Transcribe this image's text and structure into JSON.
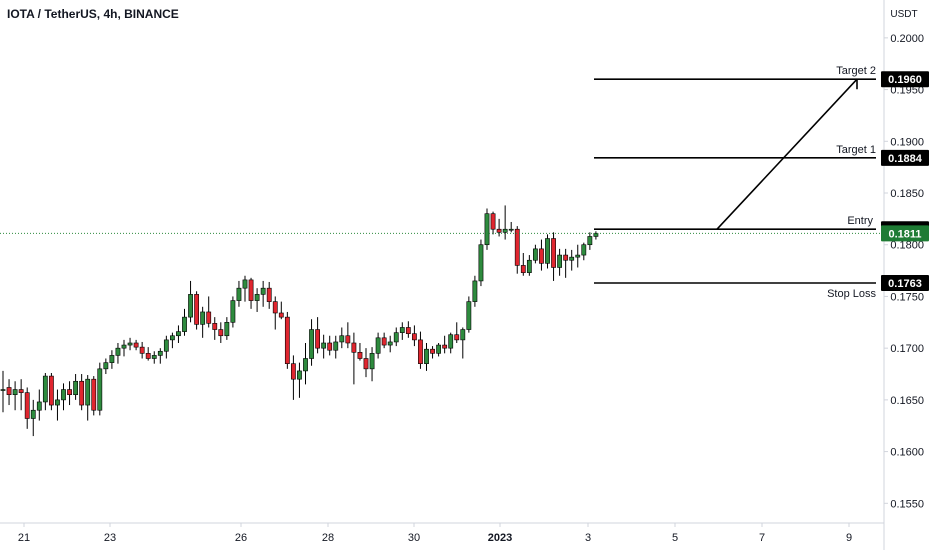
{
  "header": {
    "title": "IOTA / TetherUS, 4h, BINANCE"
  },
  "colors": {
    "up": "#2e8b3e",
    "down": "#e0262f",
    "line": "#000000",
    "axis": "#d1d4dc",
    "text": "#131722",
    "price_badge": "#1e7b34",
    "level_badge": "#000000"
  },
  "chart_data": {
    "type": "candlestick",
    "title": "IOTA / TetherUS, 4h, BINANCE",
    "y_unit": "USDT",
    "ylim": [
      0.153,
      0.2025
    ],
    "y_ticks": [
      "0.2000",
      "0.1950",
      "0.1900",
      "0.1850",
      "0.1800",
      "0.1750",
      "0.1700",
      "0.1650",
      "0.1600",
      "0.1550"
    ],
    "x_ticks": [
      "21",
      "23",
      "26",
      "28",
      "30",
      "2023",
      "3",
      "5",
      "7",
      "9"
    ],
    "current_price": "0.1811",
    "levels": [
      {
        "name": "Target 2",
        "value": "0.1960"
      },
      {
        "name": "Target 1",
        "value": "0.1884"
      },
      {
        "name": "Entry",
        "value": "0.1815"
      },
      {
        "name": "Stop Loss",
        "value": "0.1763"
      }
    ],
    "candles": [
      [
        0.166,
        0.1678,
        0.1638,
        0.166
      ],
      [
        0.1662,
        0.167,
        0.1645,
        0.1655
      ],
      [
        0.1655,
        0.1668,
        0.164,
        0.166
      ],
      [
        0.166,
        0.167,
        0.164,
        0.1657
      ],
      [
        0.1657,
        0.1662,
        0.1622,
        0.1632
      ],
      [
        0.1632,
        0.165,
        0.1615,
        0.164
      ],
      [
        0.164,
        0.166,
        0.163,
        0.1648
      ],
      [
        0.1648,
        0.1676,
        0.164,
        0.1673
      ],
      [
        0.1673,
        0.1676,
        0.164,
        0.1645
      ],
      [
        0.1645,
        0.166,
        0.163,
        0.165
      ],
      [
        0.165,
        0.1666,
        0.164,
        0.166
      ],
      [
        0.166,
        0.1668,
        0.1645,
        0.1655
      ],
      [
        0.1655,
        0.1675,
        0.165,
        0.1668
      ],
      [
        0.1668,
        0.1675,
        0.164,
        0.1645
      ],
      [
        0.1645,
        0.1674,
        0.163,
        0.167
      ],
      [
        0.167,
        0.1673,
        0.1635,
        0.164
      ],
      [
        0.164,
        0.1686,
        0.1635,
        0.168
      ],
      [
        0.168,
        0.169,
        0.1675,
        0.1686
      ],
      [
        0.1686,
        0.1698,
        0.168,
        0.1693
      ],
      [
        0.1693,
        0.1705,
        0.1685,
        0.17
      ],
      [
        0.17,
        0.1708,
        0.1692,
        0.1703
      ],
      [
        0.1703,
        0.171,
        0.1698,
        0.1705
      ],
      [
        0.1705,
        0.1708,
        0.1698,
        0.1701
      ],
      [
        0.1701,
        0.1706,
        0.169,
        0.1695
      ],
      [
        0.1695,
        0.1701,
        0.1688,
        0.169
      ],
      [
        0.169,
        0.1697,
        0.1685,
        0.1693
      ],
      [
        0.1693,
        0.17,
        0.1685,
        0.1697
      ],
      [
        0.1697,
        0.1712,
        0.169,
        0.1708
      ],
      [
        0.1708,
        0.1715,
        0.17,
        0.1712
      ],
      [
        0.1712,
        0.1722,
        0.1705,
        0.1716
      ],
      [
        0.1716,
        0.1738,
        0.1712,
        0.173
      ],
      [
        0.173,
        0.1765,
        0.1725,
        0.1752
      ],
      [
        0.1752,
        0.1755,
        0.1718,
        0.1723
      ],
      [
        0.1723,
        0.174,
        0.171,
        0.1735
      ],
      [
        0.1735,
        0.175,
        0.172,
        0.1724
      ],
      [
        0.1724,
        0.173,
        0.1708,
        0.1718
      ],
      [
        0.1718,
        0.1725,
        0.1705,
        0.1712
      ],
      [
        0.1712,
        0.173,
        0.1708,
        0.1725
      ],
      [
        0.1725,
        0.175,
        0.172,
        0.1746
      ],
      [
        0.1746,
        0.1765,
        0.174,
        0.1758
      ],
      [
        0.1758,
        0.177,
        0.1745,
        0.1766
      ],
      [
        0.1766,
        0.1768,
        0.1738,
        0.1746
      ],
      [
        0.1746,
        0.1758,
        0.1735,
        0.1752
      ],
      [
        0.1752,
        0.1765,
        0.174,
        0.1758
      ],
      [
        0.1758,
        0.1764,
        0.1738,
        0.1745
      ],
      [
        0.1745,
        0.175,
        0.1718,
        0.1734
      ],
      [
        0.1734,
        0.1745,
        0.1728,
        0.173
      ],
      [
        0.173,
        0.1735,
        0.168,
        0.1685
      ],
      [
        0.1685,
        0.1693,
        0.165,
        0.167
      ],
      [
        0.167,
        0.1686,
        0.1652,
        0.1678
      ],
      [
        0.1678,
        0.1705,
        0.1665,
        0.169
      ],
      [
        0.169,
        0.1728,
        0.1683,
        0.1718
      ],
      [
        0.1718,
        0.173,
        0.1695,
        0.17
      ],
      [
        0.17,
        0.1713,
        0.169,
        0.1705
      ],
      [
        0.1705,
        0.1712,
        0.1693,
        0.1698
      ],
      [
        0.1698,
        0.1712,
        0.169,
        0.1706
      ],
      [
        0.1706,
        0.172,
        0.17,
        0.1712
      ],
      [
        0.1712,
        0.1725,
        0.17,
        0.1705
      ],
      [
        0.1705,
        0.1715,
        0.1665,
        0.1696
      ],
      [
        0.1696,
        0.1705,
        0.1688,
        0.169
      ],
      [
        0.169,
        0.17,
        0.1672,
        0.168
      ],
      [
        0.168,
        0.1701,
        0.1668,
        0.1695
      ],
      [
        0.1695,
        0.1715,
        0.169,
        0.171
      ],
      [
        0.171,
        0.1715,
        0.17,
        0.1703
      ],
      [
        0.1703,
        0.1712,
        0.1696,
        0.1706
      ],
      [
        0.1706,
        0.172,
        0.1702,
        0.1715
      ],
      [
        0.1715,
        0.1725,
        0.1708,
        0.172
      ],
      [
        0.172,
        0.1726,
        0.171,
        0.1714
      ],
      [
        0.1714,
        0.1722,
        0.1702,
        0.1708
      ],
      [
        0.1708,
        0.1716,
        0.168,
        0.1685
      ],
      [
        0.1685,
        0.1705,
        0.1678,
        0.1699
      ],
      [
        0.1699,
        0.1702,
        0.169,
        0.1695
      ],
      [
        0.1695,
        0.1705,
        0.1692,
        0.1703
      ],
      [
        0.1703,
        0.1712,
        0.1695,
        0.17
      ],
      [
        0.17,
        0.1715,
        0.1695,
        0.1713
      ],
      [
        0.1713,
        0.1725,
        0.1705,
        0.1708
      ],
      [
        0.1708,
        0.172,
        0.169,
        0.1718
      ],
      [
        0.1718,
        0.175,
        0.1715,
        0.1745
      ],
      [
        0.1745,
        0.177,
        0.174,
        0.1765
      ],
      [
        0.1765,
        0.1805,
        0.176,
        0.18
      ],
      [
        0.18,
        0.1835,
        0.1795,
        0.183
      ],
      [
        0.183,
        0.1832,
        0.181,
        0.1815
      ],
      [
        0.1815,
        0.1825,
        0.1808,
        0.1812
      ],
      [
        0.1812,
        0.1838,
        0.1805,
        0.1815
      ],
      [
        0.1815,
        0.1822,
        0.1812,
        0.1815
      ],
      [
        0.1815,
        0.1818,
        0.1772,
        0.178
      ],
      [
        0.178,
        0.1792,
        0.177,
        0.1773
      ],
      [
        0.1773,
        0.179,
        0.177,
        0.1785
      ],
      [
        0.1785,
        0.18,
        0.1782,
        0.1796
      ],
      [
        0.1796,
        0.1805,
        0.1775,
        0.1782
      ],
      [
        0.1782,
        0.181,
        0.1777,
        0.1806
      ],
      [
        0.1806,
        0.1812,
        0.1765,
        0.1778
      ],
      [
        0.1778,
        0.1796,
        0.177,
        0.179
      ],
      [
        0.179,
        0.1796,
        0.1768,
        0.1785
      ],
      [
        0.1785,
        0.1795,
        0.1775,
        0.1788
      ],
      [
        0.1788,
        0.18,
        0.1778,
        0.179
      ],
      [
        0.179,
        0.1802,
        0.1785,
        0.18
      ],
      [
        0.18,
        0.1812,
        0.1795,
        0.1808
      ],
      [
        0.1808,
        0.1813,
        0.1805,
        0.1811
      ]
    ]
  }
}
